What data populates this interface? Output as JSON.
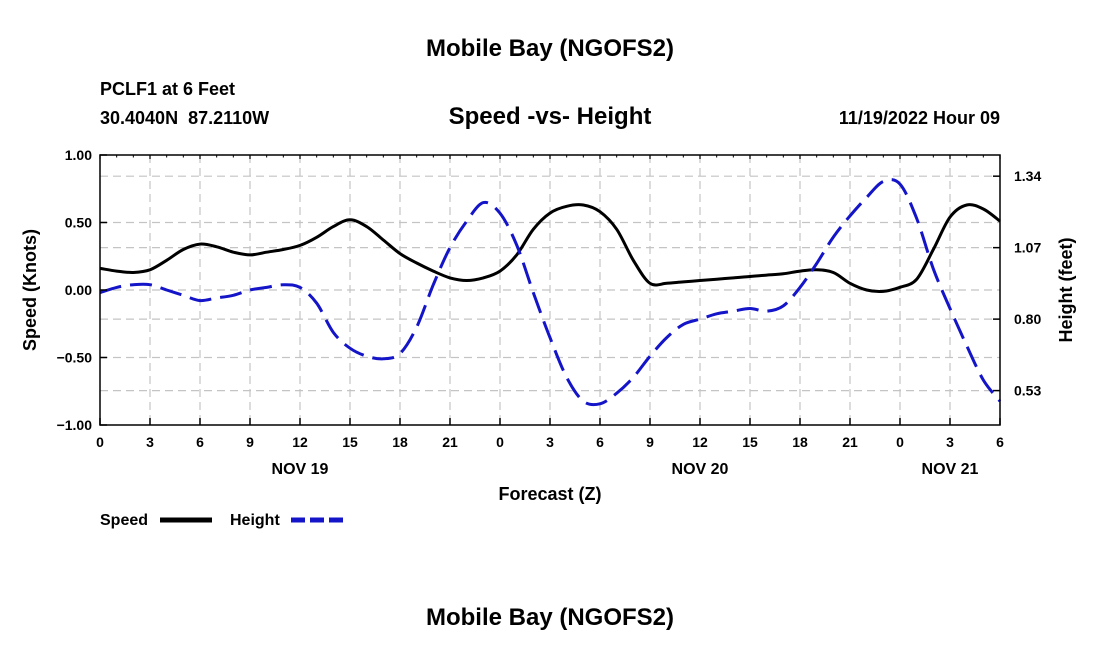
{
  "page": {
    "title_top": "Mobile Bay (NGOFS2)",
    "title_bottom": "Mobile Bay (NGOFS2)"
  },
  "chart_data": {
    "type": "line",
    "title": "Speed -vs- Height",
    "station": "PCLF1 at 6 Feet",
    "coords": "30.4040N  87.2110W",
    "datetime": "11/19/2022 Hour 09",
    "xlabel": "Forecast (Z)",
    "ylabel_left": "Speed (Knots)",
    "ylabel_right": "Height (feet)",
    "x_range_hours": [
      0,
      54
    ],
    "x_tick_hours": [
      0,
      3,
      6,
      9,
      12,
      15,
      18,
      21,
      24,
      27,
      30,
      33,
      36,
      39,
      42,
      45,
      48,
      51,
      54
    ],
    "x_tick_labels": [
      "0",
      "3",
      "6",
      "9",
      "12",
      "15",
      "18",
      "21",
      "0",
      "3",
      "6",
      "9",
      "12",
      "15",
      "18",
      "21",
      "0",
      "3",
      "6"
    ],
    "day_labels": [
      {
        "label": "NOV 19",
        "hour": 12
      },
      {
        "label": "NOV 20",
        "hour": 36
      },
      {
        "label": "NOV 21",
        "hour": 51
      }
    ],
    "ylim_left": [
      -1.0,
      1.0
    ],
    "y_ticks_left": [
      -1.0,
      -0.5,
      0.0,
      0.5,
      1.0
    ],
    "y_tick_labels_left": [
      "−1.00",
      "−0.50",
      "0.00",
      "0.50",
      "1.00"
    ],
    "ylim_right": [
      0.4,
      1.42
    ],
    "y_ticks_right": [
      0.53,
      0.8,
      1.07,
      1.34
    ],
    "y_tick_labels_right": [
      "0.53",
      "0.80",
      "1.07",
      "1.34"
    ],
    "grid": true,
    "legend": [
      {
        "label": "Speed",
        "color": "#000000",
        "style": "solid"
      },
      {
        "label": "Height",
        "color": "#1414c8",
        "style": "dashed"
      }
    ],
    "series": [
      {
        "name": "Speed",
        "axis": "left",
        "color": "#000000",
        "dash": "solid",
        "x": [
          0,
          1,
          2,
          3,
          4,
          5,
          6,
          7,
          8,
          9,
          10,
          11,
          12,
          13,
          14,
          15,
          16,
          17,
          18,
          19,
          20,
          21,
          22,
          23,
          24,
          25,
          26,
          27,
          28,
          29,
          30,
          31,
          32,
          33,
          34,
          35,
          36,
          37,
          38,
          39,
          40,
          41,
          42,
          43,
          44,
          45,
          46,
          47,
          48,
          49,
          50,
          51,
          52,
          53,
          54
        ],
        "values": [
          0.16,
          0.14,
          0.13,
          0.15,
          0.22,
          0.3,
          0.34,
          0.32,
          0.28,
          0.26,
          0.28,
          0.3,
          0.33,
          0.39,
          0.47,
          0.52,
          0.47,
          0.37,
          0.27,
          0.2,
          0.14,
          0.09,
          0.07,
          0.09,
          0.14,
          0.26,
          0.45,
          0.57,
          0.62,
          0.63,
          0.58,
          0.45,
          0.22,
          0.05,
          0.05,
          0.06,
          0.07,
          0.08,
          0.09,
          0.1,
          0.11,
          0.12,
          0.14,
          0.15,
          0.13,
          0.05,
          0.0,
          -0.01,
          0.02,
          0.08,
          0.3,
          0.54,
          0.63,
          0.6,
          0.51
        ]
      },
      {
        "name": "Height",
        "axis": "right",
        "color": "#1414c8",
        "dash": "dashed",
        "x": [
          0,
          1,
          2,
          3,
          4,
          5,
          6,
          7,
          8,
          9,
          10,
          11,
          12,
          13,
          14,
          15,
          16,
          17,
          18,
          19,
          20,
          21,
          22,
          23,
          24,
          25,
          26,
          27,
          28,
          29,
          30,
          31,
          32,
          33,
          34,
          35,
          36,
          37,
          38,
          39,
          40,
          41,
          42,
          43,
          44,
          45,
          46,
          47,
          48,
          49,
          50,
          51,
          52,
          53,
          54
        ],
        "values": [
          0.9,
          0.92,
          0.93,
          0.93,
          0.91,
          0.89,
          0.87,
          0.88,
          0.89,
          0.91,
          0.92,
          0.93,
          0.92,
          0.86,
          0.75,
          0.69,
          0.66,
          0.65,
          0.67,
          0.77,
          0.93,
          1.07,
          1.17,
          1.24,
          1.2,
          1.08,
          0.9,
          0.73,
          0.58,
          0.49,
          0.48,
          0.52,
          0.58,
          0.66,
          0.73,
          0.78,
          0.8,
          0.82,
          0.83,
          0.84,
          0.83,
          0.85,
          0.92,
          1.01,
          1.11,
          1.19,
          1.26,
          1.32,
          1.31,
          1.18,
          0.99,
          0.84,
          0.7,
          0.57,
          0.49
        ]
      }
    ]
  }
}
